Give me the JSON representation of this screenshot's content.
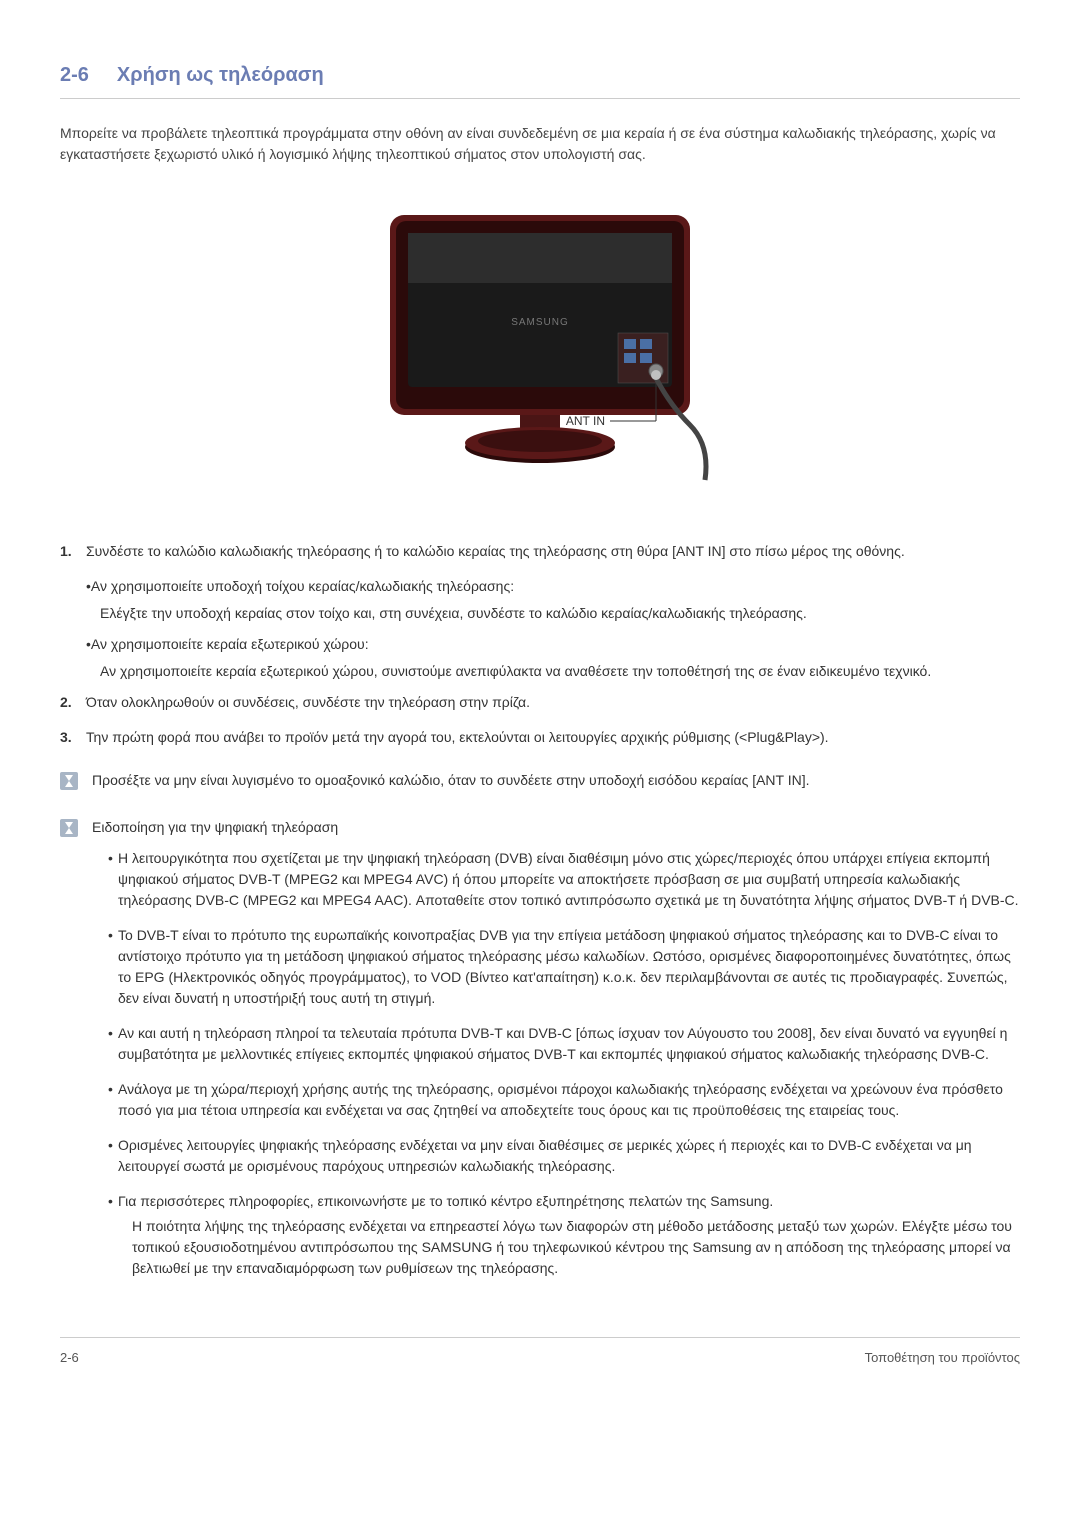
{
  "section": {
    "number": "2-6",
    "title": "Χρήση ως τηλεόραση"
  },
  "intro": "Μπορείτε να προβάλετε τηλεοπτικά προγράμματα στην οθόνη αν είναι συνδεδεμένη σε μια κεραία ή σε ένα σύστημα καλωδιακής τηλεόρασης, χωρίς να εγκαταστήσετε ξεχωριστό υλικό ή λογισμικό λήψης τηλεοπτικού σήματος στον υπολογιστή σας.",
  "steps": [
    {
      "num": "1.",
      "text": "Συνδέστε το καλώδιο καλωδιακής τηλεόρασης ή το καλώδιο κεραίας της τηλεόρασης στη θύρα [ANT IN] στο πίσω μέρος της οθόνης.",
      "subs": [
        {
          "title": "•Αν χρησιμοποιείτε υποδοχή τοίχου κεραίας/καλωδιακής τηλεόρασης:",
          "body": "Ελέγξτε την υποδοχή κεραίας στον τοίχο και, στη συνέχεια, συνδέστε το καλώδιο κεραίας/καλωδιακής τηλεόρασης."
        },
        {
          "title": "•Αν χρησιμοποιείτε κεραία εξωτερικού χώρου:",
          "body": "Αν χρησιμοποιείτε κεραία εξωτερικού χώρου, συνιστούμε ανεπιφύλακτα να αναθέσετε την τοποθέτησή της σε έναν ειδικευμένο τεχνικό."
        }
      ]
    },
    {
      "num": "2.",
      "text": "Όταν ολοκληρωθούν οι συνδέσεις, συνδέστε την τηλεόραση στην πρίζα."
    },
    {
      "num": "3.",
      "text": "Την πρώτη φορά που ανάβει το προϊόν μετά την αγορά του, εκτελούνται οι λειτουργίες αρχικής ρύθμισης (<Plug&Play>)."
    }
  ],
  "note1": "Προσέξτε να μην είναι λυγισμένο το ομοαξονικό καλώδιο, όταν το συνδέετε στην υποδοχή εισόδου κεραίας [ANT IN].",
  "note2": {
    "title": "Ειδοποίηση για την ψηφιακή τηλεόραση",
    "bullets": [
      "Η λειτουργικότητα που σχετίζεται με την ψηφιακή τηλεόραση (DVB) είναι διαθέσιμη μόνο στις χώρες/περιοχές όπου υπάρχει επίγεια εκπομπή ψηφιακού σήματος DVB-T (MPEG2 και MPEG4 AVC) ή όπου μπορείτε να αποκτήσετε πρόσβαση σε μια συμβατή υπηρεσία καλωδιακής τηλεόρασης DVB-C (MPEG2 και MPEG4 AAC). Αποταθείτε στον τοπικό αντιπρόσωπο σχετικά με τη δυνατότητα λήψης σήματος DVB-T ή DVB-C.",
      "Το DVB-T είναι το πρότυπο της ευρωπαϊκής κοινοπραξίας DVB για την επίγεια μετάδοση ψηφιακού σήματος τηλεόρασης και το DVB-C είναι το αντίστοιχο πρότυπο για τη μετάδοση ψηφιακού σήματος τηλεόρασης μέσω καλωδίων. Ωστόσο, ορισμένες διαφοροποιημένες δυνατότητες, όπως το EPG (Ηλεκτρονικός οδηγός προγράμματος), το VOD (Βίντεο κατ'απαίτηση) κ.ο.κ. δεν περιλαμβάνονται σε αυτές τις προδιαγραφές. Συνεπώς, δεν είναι δυνατή η υποστήριξή τους αυτή τη στιγμή.",
      "Αν και αυτή η τηλεόραση πληροί τα τελευταία πρότυπα DVB-T και DVB-C [όπως ίσχυαν τον Αύγουστο του 2008], δεν είναι δυνατό να εγγυηθεί η συμβατότητα με μελλοντικές επίγειες εκπομπές ψηφιακού σήματος DVB-T και εκπομπές ψηφιακού σήματος καλωδιακής τηλεόρασης DVB-C.",
      "Ανάλογα με τη χώρα/περιοχή χρήσης αυτής της τηλεόρασης, ορισμένοι πάροχοι καλωδιακής τηλεόρασης ενδέχεται να χρεώνουν ένα πρόσθετο ποσό για μια τέτοια υπηρεσία και ενδέχεται να σας ζητηθεί να αποδεχτείτε τους όρους και τις προϋποθέσεις της εταιρείας τους.",
      "Ορισμένες λειτουργίες ψηφιακής τηλεόρασης ενδέχεται να μην είναι διαθέσιμες σε μερικές χώρες ή περιοχές και το DVB-C ενδέχεται να μη λειτουργεί σωστά με ορισμένους παρόχους υπηρεσιών καλωδιακής τηλεόρασης."
    ],
    "lastBullet": "Για περισσότερες πληροφορίες, επικοινωνήστε με το τοπικό κέντρο εξυπηρέτησης πελατών της Samsung.",
    "lastBulletIndent": "Η ποιότητα λήψης της τηλεόρασης ενδέχεται να επηρεαστεί λόγω των διαφορών στη μέθοδο μετάδοσης μεταξύ των χωρών. Ελέγξτε μέσω του τοπικού εξουσιοδοτημένου αντιπρόσωπου της SAMSUNG ή του τηλεφωνικού κέντρου της Samsung αν η απόδοση της τηλεόρασης μπορεί να βελτιωθεί με την επαναδιαμόρφωση των ρυθμίσεων της τηλεόρασης."
  },
  "footer": {
    "left": "2-6",
    "right": "Τοποθέτηση του προϊόντος"
  },
  "image": {
    "antLabel": "ANT IN",
    "brandLabel": "SAMSUNG"
  },
  "colors": {
    "accent": "#6B7DB3",
    "text": "#333333",
    "border": "#cccccc",
    "iconBg": "#a8b5c5"
  }
}
